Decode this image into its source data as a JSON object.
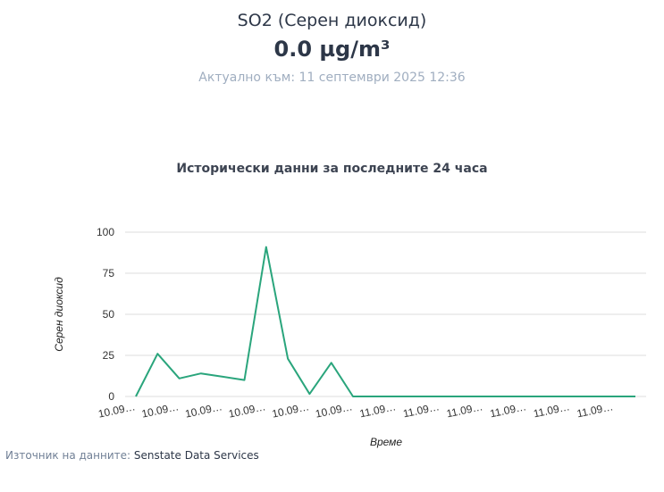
{
  "header": {
    "pollutant": "SO2 (Серен диоксид)",
    "value": "0.0 µg/m³",
    "updated": "Актуално към: 11 септември 2025 12:36"
  },
  "chart_title": "Исторически данни за последните 24 часа",
  "source": {
    "label": "Източник на данните:",
    "name": "Senstate Data Services"
  },
  "colors": {
    "line": "#2aa57c",
    "grid": "#dddddd"
  },
  "chart_data": {
    "type": "line",
    "title": "Исторически данни за последните 24 часа",
    "xlabel": "Време",
    "ylabel": "Серен диоксид",
    "ylim": [
      0,
      100
    ],
    "yticks": [
      0,
      25,
      50,
      75,
      100
    ],
    "x_tick_labels": [
      "10.09…",
      "10.09…",
      "10.09…",
      "10.09…",
      "10.09…",
      "10.09…",
      "11.09…",
      "11.09…",
      "11.09…",
      "11.09…",
      "11.09…",
      "11.09…"
    ],
    "grid": true,
    "series": [
      {
        "values": [
          0,
          26,
          11,
          14,
          12,
          10,
          91,
          23,
          1.5,
          20.5,
          0,
          0,
          0,
          0,
          0,
          0,
          0,
          0,
          0,
          0,
          0,
          0,
          0,
          0
        ]
      }
    ]
  }
}
